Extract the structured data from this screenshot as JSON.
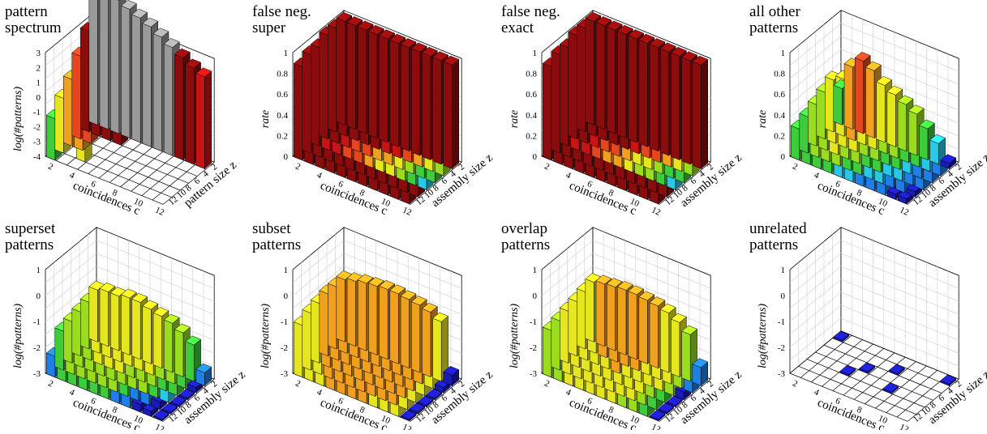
{
  "colors": {
    "colormap": [
      "#1a1ab4",
      "#1e7fe6",
      "#28c8e6",
      "#3ccc3c",
      "#9adc1e",
      "#e6e61e",
      "#f0a01e",
      "#e6461e",
      "#c81414",
      "#8a0c0c"
    ],
    "grid": "#cccccc",
    "floor_grid": "#000000",
    "saturated": "#9a9a9a"
  },
  "chart_data": [
    {
      "type": "bar3d",
      "title": "pattern\nspectrum",
      "xlabel": "coincidences c",
      "ylabel": "log(#patterns)",
      "zlabel": "pattern size z",
      "x_ticks": [
        "2",
        "4",
        "6",
        "8",
        "10",
        "12"
      ],
      "z_ticks": [
        "2",
        "4",
        "6",
        "8",
        "10",
        "12"
      ],
      "y_ticks": [
        "-4",
        "-3",
        "-2",
        "-1",
        "0",
        "1",
        "2",
        "3"
      ],
      "ylim": [
        -4,
        3
      ],
      "rows": [
        {
          "z": 2,
          "values": [
            5.2,
            5.2,
            5.0,
            4.7,
            4.4,
            4.1,
            3.7,
            3.3,
            2.9,
            2.5,
            2.2
          ]
        },
        {
          "z": 3,
          "values": [
            2.8,
            2.6,
            2.5,
            2.4,
            0,
            0,
            0,
            0,
            0,
            0,
            0
          ]
        },
        {
          "z": 4,
          "values": [
            1.6,
            1.5,
            0,
            0,
            0,
            0,
            0,
            0,
            0,
            0,
            0
          ]
        },
        {
          "z": 5,
          "values": [
            0.5,
            0.7,
            0,
            0,
            0,
            0,
            0,
            0,
            0,
            0,
            0
          ]
        },
        {
          "z": 6,
          "values": [
            -0.3,
            0,
            -0.2,
            0,
            0,
            0,
            0,
            0,
            0,
            0,
            0
          ]
        },
        {
          "z": 7,
          "values": [
            -1.2,
            0,
            0,
            0,
            0,
            0,
            0,
            0,
            0,
            0,
            0
          ]
        }
      ]
    },
    {
      "type": "bar3d",
      "title": "false neg.\nsuper",
      "xlabel": "coincidences c",
      "ylabel": "rate",
      "zlabel": "assembly size z",
      "x_ticks": [
        "2",
        "4",
        "6",
        "8",
        "10",
        "12"
      ],
      "z_ticks": [
        "2",
        "4",
        "6",
        "8",
        "10",
        "12"
      ],
      "y_ticks": [
        "0",
        "0.2",
        "0.4",
        "0.6",
        "0.8",
        "1"
      ],
      "ylim": [
        0,
        1
      ],
      "rows": [
        {
          "z": 2,
          "values": [
            1,
            1,
            1,
            1,
            1,
            1,
            1,
            1,
            1,
            1,
            1
          ]
        },
        {
          "z": 4,
          "values": [
            1,
            1,
            1,
            0.95,
            0.9,
            0.85,
            0.8,
            0.75,
            0.65,
            0.5,
            0.4
          ]
        },
        {
          "z": 6,
          "values": [
            1,
            0.95,
            0.85,
            0.75,
            0.7,
            0.65,
            0.6,
            0.55,
            0.45,
            0.35,
            0.3
          ]
        },
        {
          "z": 8,
          "values": [
            0.95,
            0.85,
            0.8,
            0.75,
            0.7,
            0.6,
            0.55,
            0.5,
            0.4,
            0.3,
            0.25
          ]
        },
        {
          "z": 10,
          "values": [
            0.95,
            0.9,
            0.9,
            0.9,
            0.9,
            0.9,
            0.9,
            0.9,
            0.9,
            0.9,
            0.9
          ]
        },
        {
          "z": 12,
          "values": [
            0.9,
            0.9,
            0.9,
            0.9,
            0.9,
            0.9,
            0.9,
            0.9,
            0.9,
            0.9,
            0.9
          ]
        }
      ]
    },
    {
      "type": "bar3d",
      "title": "false neg.\nexact",
      "xlabel": "coincidences c",
      "ylabel": "rate",
      "zlabel": "assembly size z",
      "x_ticks": [
        "2",
        "4",
        "6",
        "8",
        "10",
        "12"
      ],
      "z_ticks": [
        "2",
        "4",
        "6",
        "8",
        "10",
        "12"
      ],
      "y_ticks": [
        "0",
        "0.2",
        "0.4",
        "0.6",
        "0.8",
        "1"
      ],
      "ylim": [
        0,
        1
      ],
      "rows": [
        {
          "z": 2,
          "values": [
            1,
            1,
            1,
            1,
            1,
            1,
            1,
            1,
            1,
            1,
            1
          ]
        },
        {
          "z": 4,
          "values": [
            1,
            1,
            1,
            0.95,
            0.9,
            0.8,
            0.75,
            0.7,
            0.65,
            0.5,
            0.4
          ]
        },
        {
          "z": 6,
          "values": [
            1,
            0.95,
            0.85,
            0.75,
            0.7,
            0.6,
            0.55,
            0.5,
            0.45,
            0.35,
            0.3
          ]
        },
        {
          "z": 8,
          "values": [
            0.95,
            0.85,
            0.8,
            0.7,
            0.65,
            0.6,
            0.5,
            0.45,
            0.4,
            0.3,
            0.25
          ]
        },
        {
          "z": 10,
          "values": [
            0.95,
            0.9,
            0.9,
            0.9,
            0.9,
            0.9,
            0.9,
            0.9,
            0.9,
            0.9,
            0.9
          ]
        },
        {
          "z": 12,
          "values": [
            0.9,
            0.9,
            0.9,
            0.9,
            0.9,
            0.9,
            0.9,
            0.9,
            0.9,
            0.9,
            0.9
          ]
        }
      ]
    },
    {
      "type": "bar3d",
      "title": "all other\npatterns",
      "xlabel": "coincidences c",
      "ylabel": "rate",
      "zlabel": "assembly size z",
      "x_ticks": [
        "2",
        "4",
        "6",
        "8",
        "10",
        "12"
      ],
      "z_ticks": [
        "2",
        "4",
        "6",
        "8",
        "10",
        "12"
      ],
      "y_ticks": [
        "0",
        "0.2",
        "0.4",
        "0.6",
        "0.8",
        "1"
      ],
      "ylim": [
        0,
        1
      ],
      "rows": [
        {
          "z": 2,
          "values": [
            0.35,
            0.6,
            0.7,
            0.65,
            0.55,
            0.5,
            0.45,
            0.4,
            0.3,
            0.2,
            0.05
          ]
        },
        {
          "z": 4,
          "values": [
            0.5,
            0.55,
            0.6,
            0.55,
            0.5,
            0.45,
            0.4,
            0.35,
            0.3,
            0.2,
            0.1
          ]
        },
        {
          "z": 6,
          "values": [
            0.45,
            0.5,
            0.55,
            0.5,
            0.45,
            0.4,
            0.35,
            0.3,
            0.25,
            0.15,
            0.1
          ]
        },
        {
          "z": 8,
          "values": [
            0.4,
            0.45,
            0.5,
            0.45,
            0.4,
            0.35,
            0.3,
            0.25,
            0.2,
            0.15,
            0.1
          ]
        },
        {
          "z": 10,
          "values": [
            0.35,
            0.4,
            0.45,
            0.4,
            0.35,
            0.3,
            0.25,
            0.2,
            0.15,
            0.1,
            0.05
          ]
        },
        {
          "z": 12,
          "values": [
            0.3,
            0.35,
            0.35,
            0.3,
            0.25,
            0.2,
            0.15,
            0.12,
            0.1,
            0.05,
            0.05
          ]
        }
      ]
    },
    {
      "type": "bar3d",
      "title": "superset\npatterns",
      "xlabel": "coincidences c",
      "ylabel": "log(#patterns)",
      "zlabel": "assembly size z",
      "x_ticks": [
        "2",
        "4",
        "6",
        "8",
        "10",
        "12"
      ],
      "z_ticks": [
        "2",
        "4",
        "6",
        "8",
        "10",
        "12"
      ],
      "y_ticks": [
        "-3",
        "-2",
        "-1",
        "0",
        "1"
      ],
      "ylim": [
        -3,
        1
      ],
      "rows": [
        {
          "z": 2,
          "values": [
            -1.0,
            -0.9,
            -0.9,
            -0.8,
            -0.8,
            -0.9,
            -1.0,
            -1.1,
            -1.3,
            -1.6,
            -2.5
          ]
        },
        {
          "z": 4,
          "values": [
            -1.2,
            -1.0,
            -0.9,
            -0.9,
            -0.9,
            -1.0,
            -1.0,
            -1.2,
            -1.4,
            -1.7,
            -2.8
          ]
        },
        {
          "z": 6,
          "values": [
            -1.3,
            -1.1,
            -1.0,
            -1.0,
            -1.0,
            -1.1,
            -1.2,
            -1.3,
            -1.5,
            -1.8,
            -3.0
          ]
        },
        {
          "z": 8,
          "values": [
            -1.4,
            -1.2,
            -1.1,
            -1.1,
            -1.1,
            -1.2,
            -1.3,
            -1.4,
            -1.6,
            -2.0,
            -3.0
          ]
        },
        {
          "z": 10,
          "values": [
            -1.5,
            -1.3,
            -1.2,
            -1.2,
            -1.3,
            -1.4,
            -1.7,
            -2.2,
            -2.5,
            -2.7,
            -3.0
          ]
        },
        {
          "z": 12,
          "values": [
            -2.2,
            -1.6,
            -1.5,
            -1.5,
            -1.6,
            -1.8,
            -2.2,
            -2.5,
            -2.7,
            -2.8,
            -3.0
          ]
        }
      ]
    },
    {
      "type": "bar3d",
      "title": "subset\npatterns",
      "xlabel": "coincidences c",
      "ylabel": "log(#patterns)",
      "zlabel": "assembly size z",
      "x_ticks": [
        "2",
        "4",
        "6",
        "8",
        "10",
        "12"
      ],
      "z_ticks": [
        "2",
        "4",
        "6",
        "8",
        "10",
        "12"
      ],
      "y_ticks": [
        "-3",
        "-2",
        "-1",
        "0",
        "1"
      ],
      "ylim": [
        -3,
        1
      ],
      "rows": [
        {
          "z": 2,
          "values": [
            -0.6,
            -0.5,
            -0.4,
            -0.35,
            -0.3,
            -0.3,
            -0.35,
            -0.4,
            -0.5,
            -0.7,
            -2.6
          ]
        },
        {
          "z": 4,
          "values": [
            -0.6,
            -0.5,
            -0.4,
            -0.3,
            -0.3,
            -0.3,
            -0.3,
            -0.4,
            -0.5,
            -0.7,
            -2.8
          ]
        },
        {
          "z": 6,
          "values": [
            -0.6,
            -0.5,
            -0.4,
            -0.3,
            -0.25,
            -0.25,
            -0.3,
            -0.35,
            -0.5,
            -0.7,
            -3.0
          ]
        },
        {
          "z": 8,
          "values": [
            -0.7,
            -0.55,
            -0.45,
            -0.35,
            -0.3,
            -0.3,
            -0.35,
            -0.4,
            -0.55,
            -0.8,
            -3.0
          ]
        },
        {
          "z": 10,
          "values": [
            -0.8,
            -0.65,
            -0.55,
            -0.45,
            -0.4,
            -0.4,
            -0.45,
            -0.5,
            -0.6,
            -0.8,
            -3.0
          ]
        },
        {
          "z": 12,
          "values": [
            -1.0,
            -0.8,
            -0.7,
            -0.6,
            -0.55,
            -0.55,
            -0.6,
            -0.7,
            -0.8,
            -0.9,
            -3.0
          ]
        }
      ]
    },
    {
      "type": "bar3d",
      "title": "overlap\npatterns",
      "xlabel": "coincidences c",
      "ylabel": "log(#patterns)",
      "zlabel": "assembly size z",
      "x_ticks": [
        "2",
        "4",
        "6",
        "8",
        "10",
        "12"
      ],
      "z_ticks": [
        "2",
        "4",
        "6",
        "8",
        "10",
        "12"
      ],
      "y_ticks": [
        "-3",
        "-2",
        "-1",
        "0",
        "1"
      ],
      "ylim": [
        -3,
        1
      ],
      "rows": [
        {
          "z": 2,
          "values": [
            -0.7,
            -0.6,
            -0.55,
            -0.5,
            -0.5,
            -0.55,
            -0.6,
            -0.7,
            -0.9,
            -1.2,
            -2.3
          ]
        },
        {
          "z": 4,
          "values": [
            -0.8,
            -0.7,
            -0.6,
            -0.55,
            -0.55,
            -0.6,
            -0.65,
            -0.75,
            -0.9,
            -1.3,
            -2.5
          ]
        },
        {
          "z": 6,
          "values": [
            -0.9,
            -0.8,
            -0.7,
            -0.65,
            -0.6,
            -0.65,
            -0.7,
            -0.8,
            -1.0,
            -1.4,
            -2.7
          ]
        },
        {
          "z": 8,
          "values": [
            -1.0,
            -0.9,
            -0.8,
            -0.7,
            -0.7,
            -0.7,
            -0.8,
            -0.9,
            -1.1,
            -1.5,
            -3.0
          ]
        },
        {
          "z": 10,
          "values": [
            -1.1,
            -1.0,
            -0.9,
            -0.8,
            -0.8,
            -0.8,
            -0.9,
            -1.0,
            -1.2,
            -1.6,
            -3.0
          ]
        },
        {
          "z": 12,
          "values": [
            -1.2,
            -1.1,
            -1.0,
            -0.9,
            -0.9,
            -0.9,
            -1.0,
            -1.1,
            -1.3,
            -1.7,
            -3.0
          ]
        }
      ]
    },
    {
      "type": "bar3d",
      "title": "unrelated\npatterns",
      "xlabel": "coincidences c",
      "ylabel": "log(#patterns)",
      "zlabel": "assembly size z",
      "x_ticks": [
        "2",
        "4",
        "6",
        "8",
        "10",
        "12"
      ],
      "z_ticks": [
        "2",
        "4",
        "6",
        "8",
        "10",
        "12"
      ],
      "y_ticks": [
        "-3",
        "-2",
        "-1",
        "0",
        "1"
      ],
      "ylim": [
        -3,
        1
      ],
      "rows": [
        {
          "z": 2,
          "values": [
            -3,
            0,
            0,
            0,
            0,
            0,
            0,
            0,
            0,
            0,
            -3
          ]
        },
        {
          "z": 4,
          "values": [
            0,
            0,
            0,
            0,
            0,
            0,
            -3,
            0,
            0,
            0,
            0
          ]
        },
        {
          "z": 6,
          "values": [
            0,
            0,
            0,
            0,
            -3,
            0,
            0,
            0,
            0,
            0,
            0
          ]
        },
        {
          "z": 8,
          "values": [
            0,
            0,
            0,
            -3,
            0,
            0,
            0,
            -3,
            0,
            0,
            0
          ]
        },
        {
          "z": 10,
          "values": [
            0,
            0,
            0,
            0,
            0,
            0,
            0,
            0,
            0,
            0,
            0
          ]
        },
        {
          "z": 12,
          "values": [
            0,
            0,
            0,
            0,
            0,
            0,
            0,
            0,
            0,
            0,
            0
          ]
        }
      ]
    }
  ]
}
